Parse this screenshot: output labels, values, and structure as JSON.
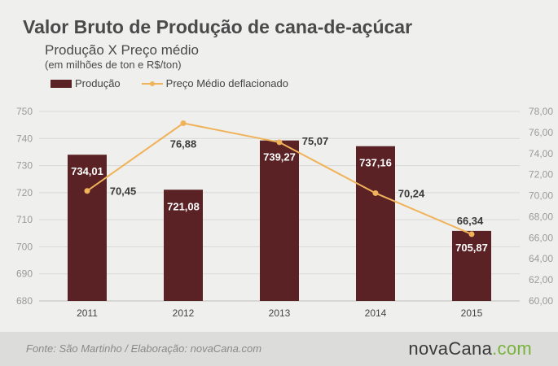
{
  "chart_data": {
    "type": "bar",
    "title": "Valor Bruto de Produção de cana-de-açúcar",
    "subtitle": "Produção X Preço médio",
    "subtitle2": "(em milhões de ton e R$/ton)",
    "categories": [
      "2011",
      "2012",
      "2013",
      "2014",
      "2015"
    ],
    "series": [
      {
        "name": "Produção",
        "type": "bar",
        "axis": "left",
        "color": "#5a2224",
        "values": [
          734.01,
          721.08,
          739.27,
          737.16,
          705.87
        ],
        "labels": [
          "734,01",
          "721,08",
          "739,27",
          "737,16",
          "705,87"
        ]
      },
      {
        "name": "Preço Médio deflacionado",
        "type": "line",
        "axis": "right",
        "color": "#f0b35a",
        "values": [
          70.45,
          76.88,
          75.07,
          70.24,
          66.34
        ],
        "labels": [
          "70,45",
          "76,88",
          "75,07",
          "70,24",
          "66,34"
        ]
      }
    ],
    "y_left": {
      "min": 680,
      "max": 750,
      "ticks": [
        "680",
        "690",
        "700",
        "710",
        "720",
        "730",
        "740",
        "750"
      ]
    },
    "y_right": {
      "min": 60,
      "max": 78,
      "ticks": [
        "60,00",
        "62,00",
        "64,00",
        "66,00",
        "68,00",
        "70,00",
        "72,00",
        "74,00",
        "76,00",
        "78,00"
      ]
    },
    "grid": true,
    "legend_position": "top-left"
  },
  "footer": {
    "source": "Fonte: São Martinho / Elaboração: novaCana.com",
    "logo_main": "novaCana",
    "logo_suffix": ".com"
  }
}
